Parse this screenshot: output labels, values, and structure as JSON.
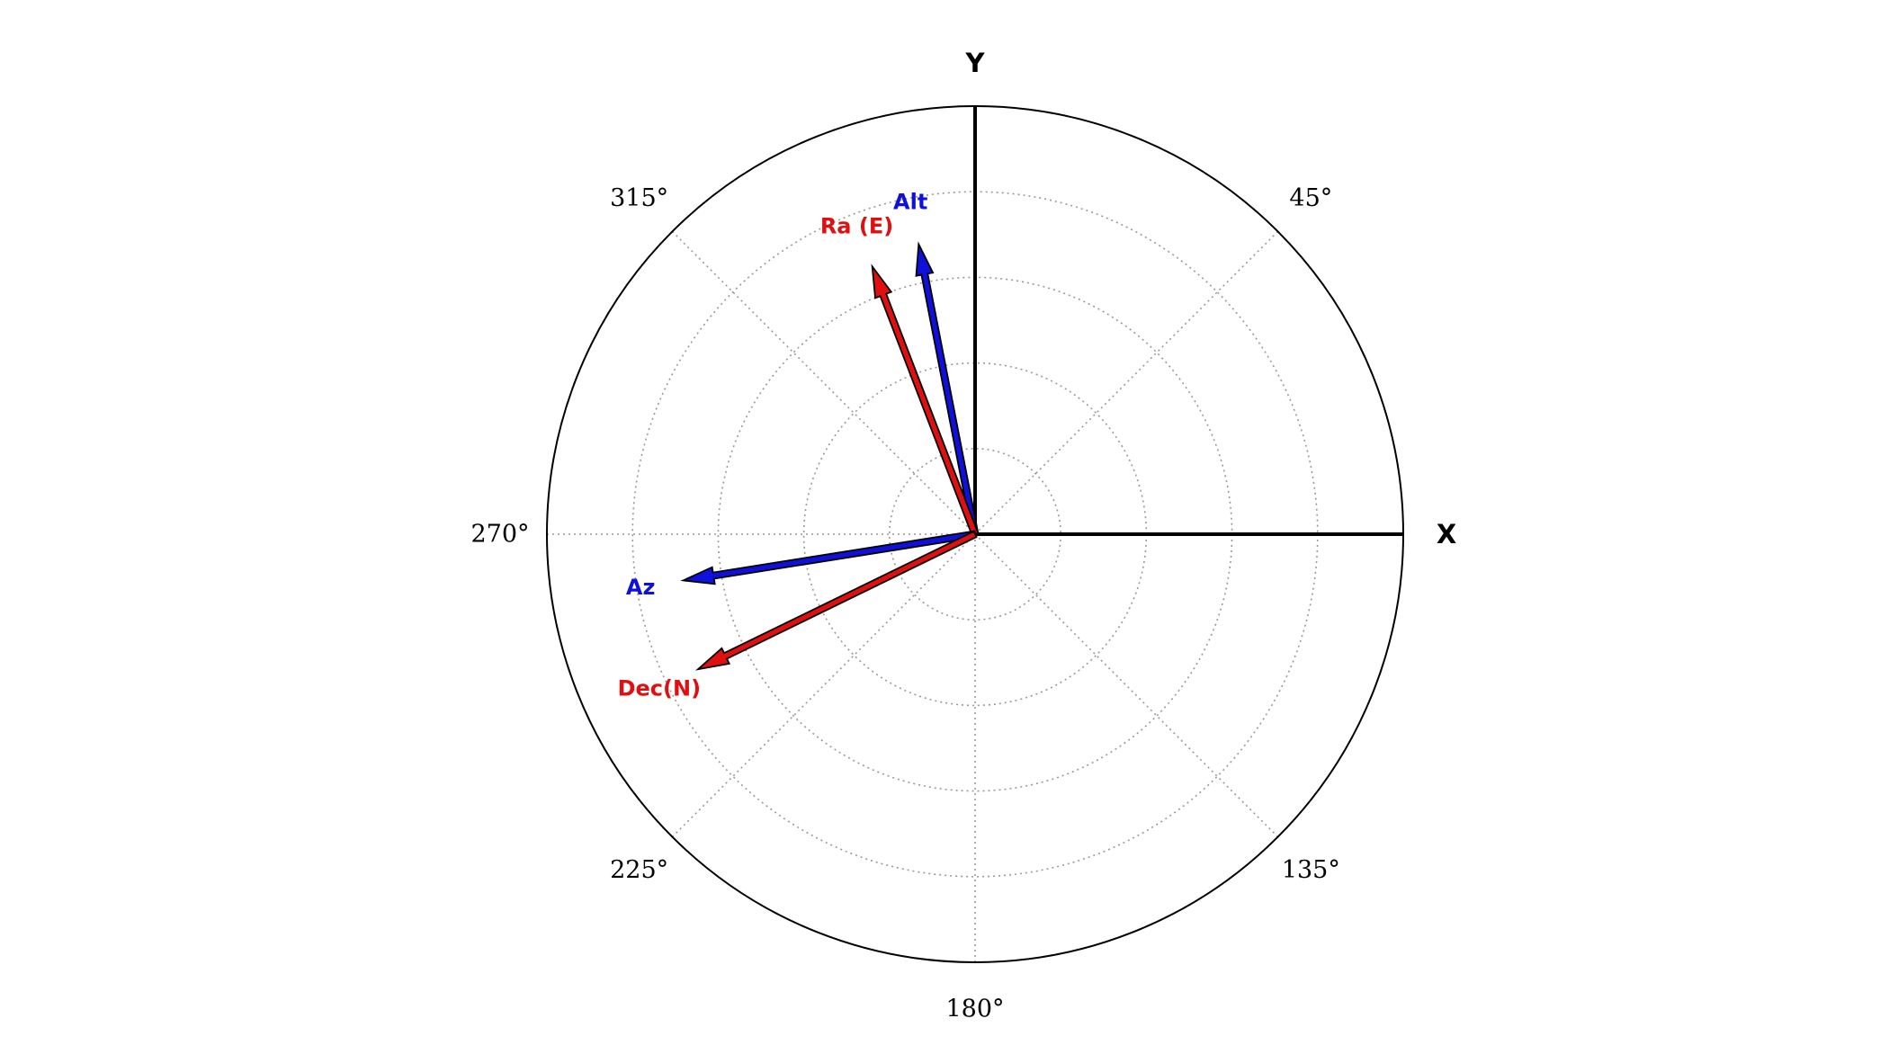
{
  "chart_data": {
    "type": "polar-vector",
    "angle_tick_labels": [
      "45°",
      "135°",
      "180°",
      "225°",
      "270°",
      "315°"
    ],
    "angle_ticks_deg": [
      45,
      135,
      180,
      225,
      270,
      315
    ],
    "rings": 5,
    "grid": true,
    "axes": [
      {
        "name": "X",
        "angle_deg": 90
      },
      {
        "name": "Y",
        "angle_deg": 0
      }
    ],
    "vectors": [
      {
        "name": "Alt",
        "color": "#1010dd",
        "angle_deg": 349,
        "length": 0.69
      },
      {
        "name": "Ra (E)",
        "color": "#e01010",
        "angle_deg": 339,
        "length": 0.67
      },
      {
        "name": "Az",
        "color": "#1010dd",
        "angle_deg": 261,
        "length": 0.69
      },
      {
        "name": "Dec(N)",
        "color": "#e01010",
        "angle_deg": 244,
        "length": 0.72
      }
    ]
  }
}
